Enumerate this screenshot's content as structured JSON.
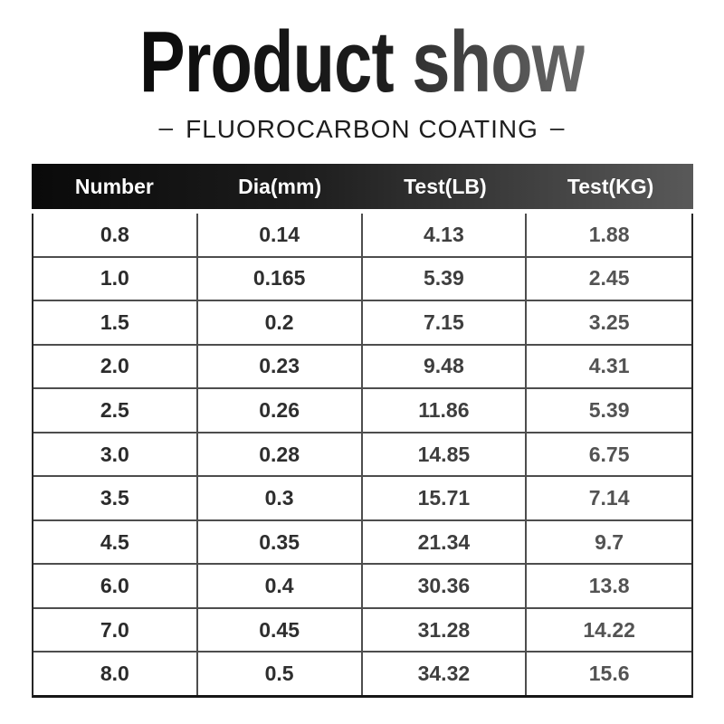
{
  "header": {
    "title_words": [
      "Product",
      "show"
    ],
    "subtitle": "FLUOROCARBON COATING",
    "subtitle_dash": "–"
  },
  "chart_data": {
    "type": "table",
    "title": "Product show",
    "subtitle": "FLUOROCARBON COATING",
    "columns": [
      "Number",
      "Dia(mm)",
      "Test(LB)",
      "Test(KG)"
    ],
    "rows": [
      [
        "0.8",
        "0.14",
        "4.13",
        "1.88"
      ],
      [
        "1.0",
        "0.165",
        "5.39",
        "2.45"
      ],
      [
        "1.5",
        "0.2",
        "7.15",
        "3.25"
      ],
      [
        "2.0",
        "0.23",
        "9.48",
        "4.31"
      ],
      [
        "2.5",
        "0.26",
        "11.86",
        "5.39"
      ],
      [
        "3.0",
        "0.28",
        "14.85",
        "6.75"
      ],
      [
        "3.5",
        "0.3",
        "15.71",
        "7.14"
      ],
      [
        "4.5",
        "0.35",
        "21.34",
        "9.7"
      ],
      [
        "6.0",
        "0.4",
        "30.36",
        "13.8"
      ],
      [
        "7.0",
        "0.45",
        "31.28",
        "14.22"
      ],
      [
        "8.0",
        "0.5",
        "34.32",
        "15.6"
      ]
    ]
  },
  "colors": {
    "header_gradient_left": "#0a0a0a",
    "header_gradient_right": "#595959",
    "header_text": "#ffffff",
    "title_dark": "#0c0c0c",
    "title_light": "#6a6a6a",
    "grid_line": "#4d4d4d",
    "outer_border": "#161616",
    "cell_text": "#2e2e2e",
    "background": "#ffffff"
  }
}
